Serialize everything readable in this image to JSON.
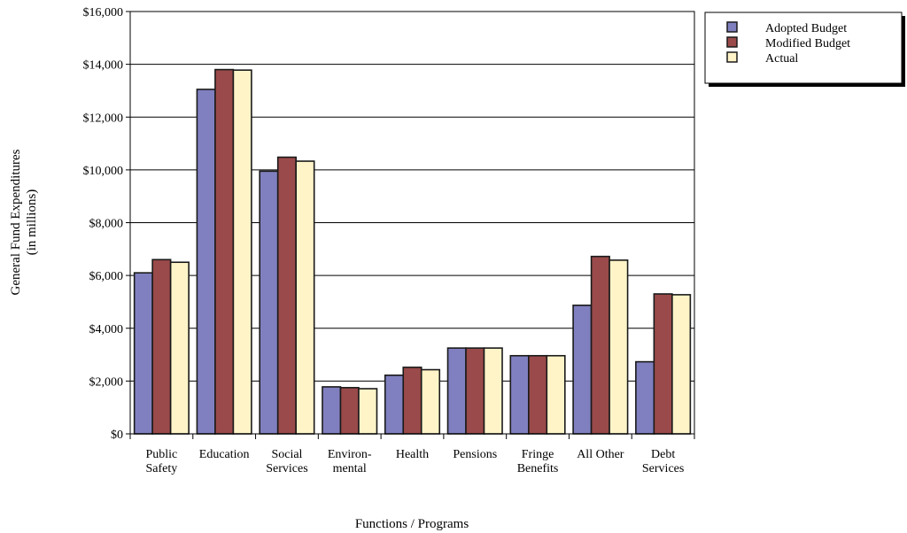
{
  "chart_data": {
    "type": "bar",
    "xlabel": "Functions / Programs",
    "ylabel": [
      "General Fund Expenditures",
      "(in millions)"
    ],
    "ylim": [
      0,
      16000
    ],
    "yticks": [
      0,
      2000,
      4000,
      6000,
      8000,
      10000,
      12000,
      14000,
      16000
    ],
    "ytick_labels": [
      "$0",
      "$2,000",
      "$4,000",
      "$6,000",
      "$8,000",
      "$10,000",
      "$12,000",
      "$14,000",
      "$16,000"
    ],
    "grid": true,
    "legend_position": "top-right",
    "categories": [
      [
        "Public",
        "Safety"
      ],
      [
        "Education"
      ],
      [
        "Social",
        "Services"
      ],
      [
        "Environ-",
        "mental"
      ],
      [
        "Health"
      ],
      [
        "Pensions"
      ],
      [
        "Fringe",
        "Benefits"
      ],
      [
        "All Other"
      ],
      [
        "Debt",
        "Services"
      ]
    ],
    "series": [
      {
        "name": "Adopted Budget",
        "color": "#8080c0",
        "values": [
          6100,
          13050,
          9950,
          1780,
          2220,
          3250,
          2960,
          4870,
          2730
        ]
      },
      {
        "name": "Modified Budget",
        "color": "#9a4a4a",
        "values": [
          6600,
          13800,
          10480,
          1750,
          2520,
          3250,
          2960,
          6720,
          5300
        ]
      },
      {
        "name": "Actual",
        "color": "#fff4c8",
        "values": [
          6500,
          13780,
          10330,
          1710,
          2430,
          3250,
          2960,
          6580,
          5270
        ]
      }
    ]
  }
}
